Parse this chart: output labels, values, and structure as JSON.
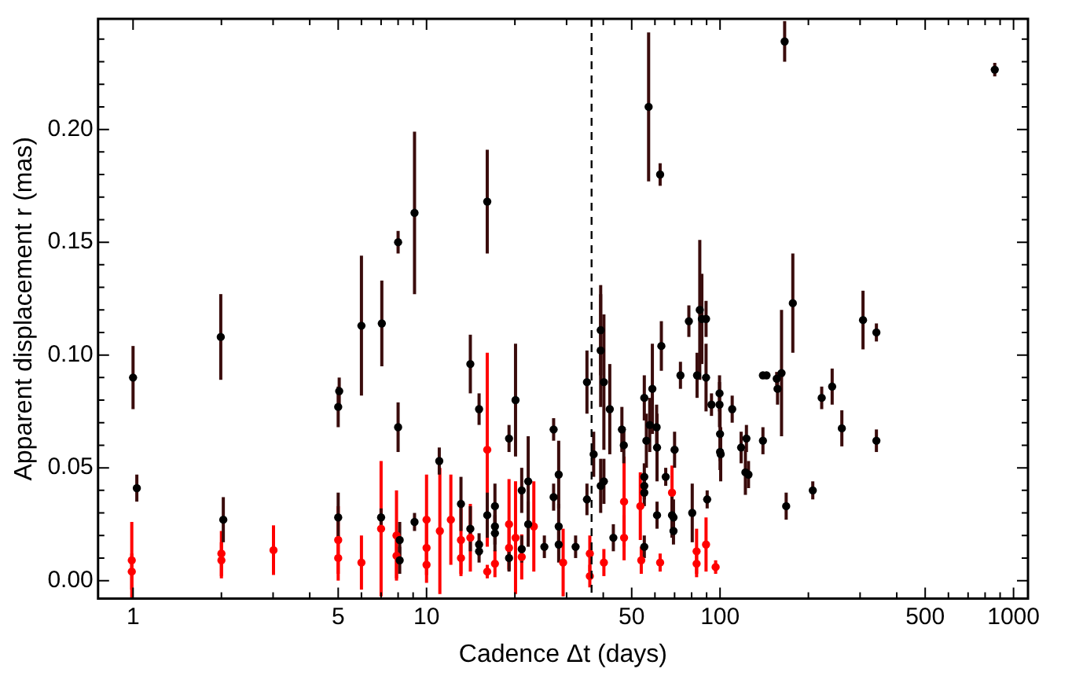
{
  "chart_data": {
    "type": "scatter",
    "xlabel": "Cadence Δt (days)",
    "ylabel": "Apparent displacement r (mas)",
    "log": "x",
    "marker": "circle",
    "xlim": [
      0.76,
      1120
    ],
    "xticks": [
      1,
      {
        "value": 2,
        "label": null
      },
      {
        "value": 3,
        "label": null
      },
      {
        "value": 4,
        "label": null
      },
      5,
      {
        "value": 6,
        "label": null
      },
      {
        "value": 7,
        "label": null
      },
      {
        "value": 8,
        "label": null
      },
      {
        "value": 9,
        "label": null
      },
      10,
      {
        "value": 20,
        "label": null
      },
      {
        "value": 30,
        "label": null
      },
      {
        "value": 40,
        "label": null
      },
      50,
      {
        "value": 60,
        "label": null
      },
      {
        "value": 70,
        "label": null
      },
      {
        "value": 80,
        "label": null
      },
      {
        "value": 90,
        "label": null
      },
      100,
      {
        "value": 200,
        "label": null
      },
      {
        "value": 300,
        "label": null
      },
      {
        "value": 400,
        "label": null
      },
      500,
      {
        "value": 600,
        "label": null
      },
      {
        "value": 700,
        "label": null
      },
      {
        "value": 800,
        "label": null
      },
      {
        "value": 900,
        "label": null
      },
      1000
    ],
    "ylim": [
      -0.008,
      0.249
    ],
    "yticks": [
      {
        "value": 0,
        "label": "0.00"
      },
      {
        "value": 0.01,
        "label": null
      },
      {
        "value": 0.02,
        "label": null
      },
      {
        "value": 0.03,
        "label": null
      },
      {
        "value": 0.04,
        "label": null
      },
      {
        "value": 0.05,
        "label": "0.05"
      },
      {
        "value": 0.06,
        "label": null
      },
      {
        "value": 0.07,
        "label": null
      },
      {
        "value": 0.08,
        "label": null
      },
      {
        "value": 0.09,
        "label": null
      },
      {
        "value": 0.1,
        "label": "0.10"
      },
      {
        "value": 0.11,
        "label": null
      },
      {
        "value": 0.12,
        "label": null
      },
      {
        "value": 0.13,
        "label": null
      },
      {
        "value": 0.14,
        "label": null
      },
      {
        "value": 0.15,
        "label": "0.15"
      },
      {
        "value": 0.16,
        "label": null
      },
      {
        "value": 0.17,
        "label": null
      },
      {
        "value": 0.18,
        "label": null
      },
      {
        "value": 0.19,
        "label": null
      },
      {
        "value": 0.2,
        "label": "0.20"
      },
      {
        "value": 0.21,
        "label": null
      },
      {
        "value": 0.22,
        "label": null
      },
      {
        "value": 0.23,
        "label": null
      },
      {
        "value": 0.24,
        "label": null
      }
    ],
    "ref_lines": [
      {
        "axis": "x",
        "value": 36.5,
        "line_style": "dashed",
        "color": "#000000"
      }
    ],
    "series": [
      {
        "color": "#000000",
        "x": [
          1,
          1.03,
          1.99,
          2.03,
          5.04,
          5.0,
          5.0,
          6.0,
          7.04,
          7.0,
          8.0,
          8.0,
          8.1,
          8.1,
          9.1,
          9.1,
          11.05,
          13.1,
          14.1,
          14.1,
          15.1,
          15.1,
          15.1,
          16.1,
          16.1,
          17.1,
          17.1,
          17.1,
          19.1,
          19.1,
          20.1,
          21.1,
          21.1,
          22.2,
          22.2,
          25.2,
          27.1,
          27.1,
          28.2,
          28.2,
          28.2,
          32.2,
          35.2,
          35.2,
          37.1,
          39.2,
          39.2,
          39.2,
          40.2,
          40.2,
          42.1,
          43.3,
          46.3,
          47,
          55.2,
          56.1,
          55.2,
          55.2,
          55.2,
          55.2,
          57.1,
          58.8,
          57.6,
          60.8,
          61,
          61,
          62.5,
          63.1,
          65.3,
          68.6,
          69.4,
          69.4,
          70,
          73.3,
          78.3,
          80.4,
          83.5,
          85.3,
          86.7,
          89.6,
          89.6,
          90.4,
          93.5,
          99.6,
          99.6,
          100,
          100,
          100.5,
          110,
          118,
          123,
          122,
          125,
          140,
          140,
          144,
          156,
          157,
          162,
          166,
          168,
          177,
          207,
          222,
          241,
          260,
          307,
          341,
          341,
          863
        ],
        "values": [
          0.09,
          0.041,
          0.108,
          0.027,
          0.084,
          0.077,
          0.028,
          0.113,
          0.114,
          0.028,
          0.15,
          0.068,
          0.018,
          0.009,
          0.163,
          0.026,
          0.053,
          0.034,
          0.096,
          0.023,
          0.076,
          0.016,
          0.013,
          0.168,
          0.029,
          0.033,
          0.024,
          0.021,
          0.063,
          0.01,
          0.08,
          0.04,
          0.014,
          0.044,
          0.025,
          0.015,
          0.067,
          0.037,
          0.047,
          0.024,
          0.016,
          0.015,
          0.088,
          0.036,
          0.056,
          0.111,
          0.102,
          0.042,
          0.088,
          0.044,
          0.076,
          0.019,
          0.067,
          0.06,
          0.081,
          0.062,
          0.046,
          0.042,
          0.039,
          0.015,
          0.21,
          0.085,
          0.069,
          0.068,
          0.059,
          0.029,
          0.18,
          0.104,
          0.046,
          0.029,
          0.028,
          0.022,
          0.058,
          0.091,
          0.115,
          0.03,
          0.091,
          0.12,
          0.116,
          0.116,
          0.09,
          0.036,
          0.078,
          0.083,
          0.078,
          0.065,
          0.057,
          0.056,
          0.076,
          0.059,
          0.063,
          0.048,
          0.047,
          0.062,
          0.091,
          0.091,
          0.0895,
          0.085,
          0.092,
          0.239,
          0.033,
          0.123,
          0.04,
          0.081,
          0.086,
          0.0675,
          0.1155,
          0.11,
          0.062,
          0.2265
        ],
        "errors": [
          0.014,
          0.006,
          0.019,
          0.01,
          0.006,
          0.009,
          0.011,
          0.031,
          0.019,
          0.004,
          0.005,
          0.011,
          0.008,
          0.006,
          0.036,
          0.004,
          0.006,
          0.012,
          0.013,
          0.01,
          0.007,
          0.005,
          0.005,
          0.023,
          0.01,
          0.01,
          0.008,
          0.008,
          0.006,
          0.006,
          0.025,
          0.01,
          0.006,
          0.02,
          0.01,
          0.005,
          0.005,
          0.006,
          0.015,
          0.01,
          0.008,
          0.005,
          0.014,
          0.007,
          0.01,
          0.02,
          0.025,
          0.012,
          0.03,
          0.01,
          0.02,
          0.006,
          0.01,
          0.008,
          0.01,
          0.012,
          0.006,
          0.006,
          0.006,
          0.005,
          0.033,
          0.02,
          0.012,
          0.01,
          0.015,
          0.006,
          0.005,
          0.011,
          0.004,
          0.01,
          0.008,
          0.006,
          0.008,
          0.006,
          0.007,
          0.013,
          0.01,
          0.031,
          0.02,
          0.008,
          0.015,
          0.004,
          0.005,
          0.008,
          0.01,
          0.012,
          0.008,
          0.012,
          0.006,
          0.007,
          0.006,
          0.01,
          0.006,
          0.006,
          null,
          null,
          0.003,
          0.007,
          0.028,
          0.009,
          0.006,
          0.022,
          0.004,
          0.005,
          0.008,
          0.008,
          0.013,
          0.004,
          0.005,
          0.003
        ]
      },
      {
        "color": "#ff0000",
        "x": [
          0.99,
          0.99,
          2.0,
          2.0,
          3.01,
          5.0,
          5.0,
          6.0,
          7.0,
          7.9,
          7.9,
          10.0,
          10.0,
          10.0,
          11.1,
          12.1,
          13.1,
          13.1,
          14.1,
          16.1,
          16.1,
          17.1,
          19.1,
          19.1,
          20.1,
          21.1,
          23.2,
          29.2,
          36.0,
          36.0,
          40.2,
          47.1,
          47.1,
          53.5,
          53.9,
          62.5,
          68.6,
          83.2,
          83.2,
          89.6,
          96.6
        ],
        "values": [
          0.009,
          0.004,
          0.012,
          0.009,
          0.0135,
          0.018,
          0.01,
          0.008,
          0.023,
          0.02,
          0.011,
          0.027,
          0.0145,
          0.007,
          0.022,
          0.027,
          0.018,
          0.01,
          0.019,
          0.058,
          0.004,
          0.0075,
          0.025,
          0.0145,
          0.019,
          0.0105,
          0.024,
          0.008,
          0.012,
          0.002,
          0.008,
          0.035,
          0.019,
          0.033,
          0.009,
          0.008,
          0.039,
          0.013,
          0.0075,
          0.016,
          0.006
        ],
        "errors": [
          0.017,
          0.008,
          0.01,
          0.008,
          0.011,
          0.015,
          0.01,
          0.012,
          0.03,
          0.02,
          0.01,
          0.02,
          0.012,
          0.008,
          0.028,
          0.02,
          0.015,
          0.008,
          0.015,
          0.043,
          0.003,
          0.006,
          0.02,
          0.01,
          0.025,
          0.01,
          0.02,
          0.015,
          0.008,
          0.005,
          0.006,
          0.02,
          0.01,
          0.015,
          0.006,
          0.004,
          0.012,
          0.01,
          0.006,
          0.012,
          0.003
        ]
      }
    ]
  }
}
